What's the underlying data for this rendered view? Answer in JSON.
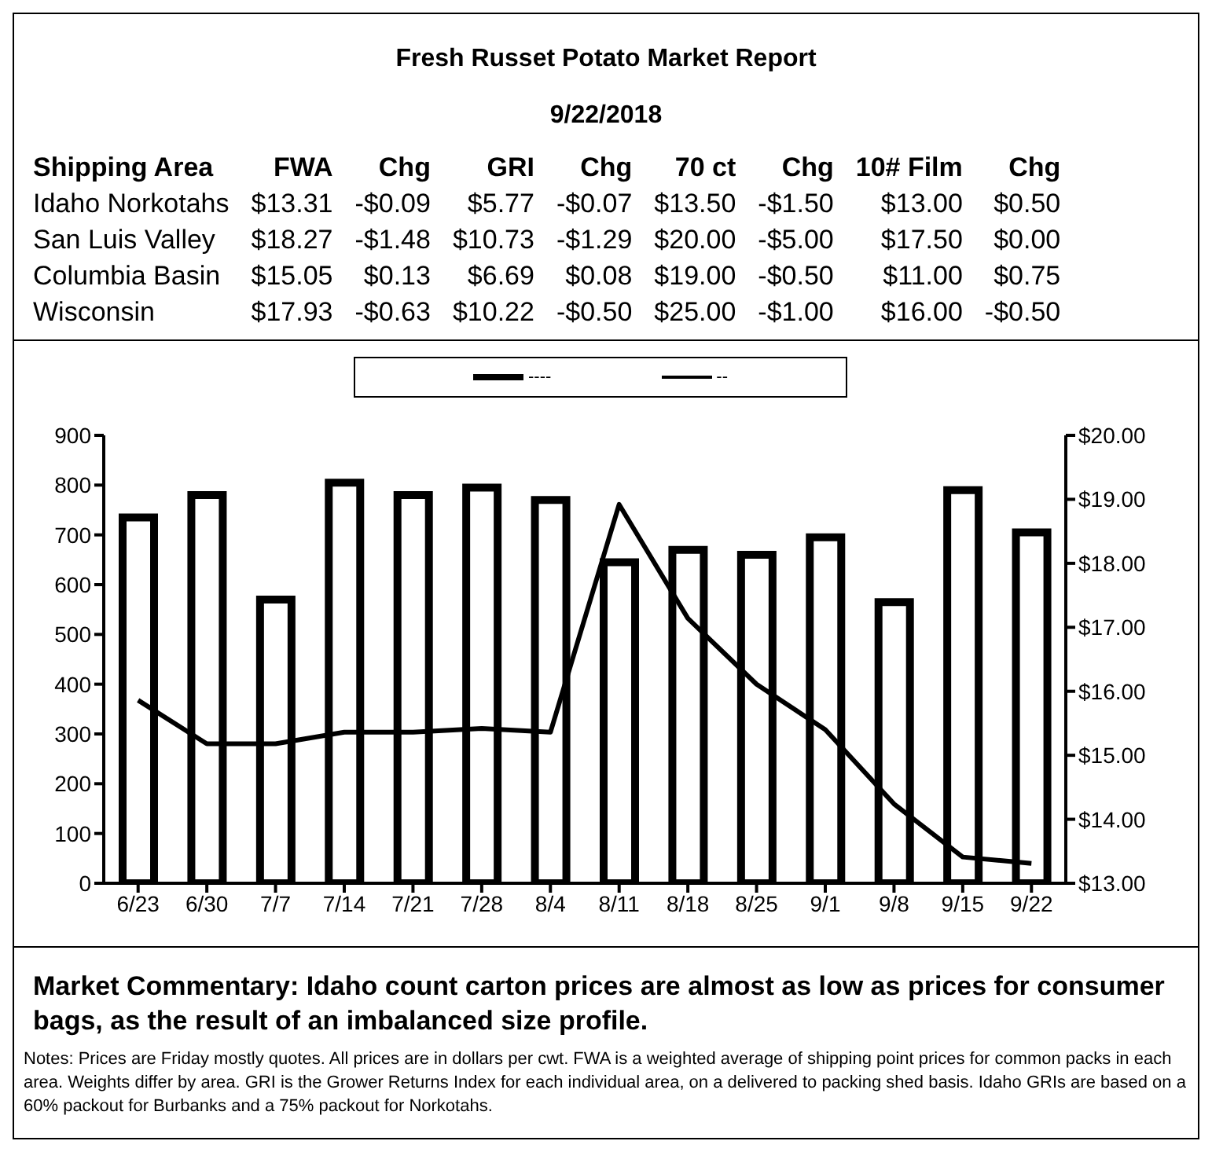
{
  "chart_data": {
    "type": "bar",
    "title": "Fresh Russet Potato Market Report",
    "subtitle": "9/22/2018",
    "categories": [
      "6/23",
      "6/30",
      "7/7",
      "7/14",
      "7/21",
      "7/28",
      "8/4",
      "8/11",
      "8/18",
      "8/25",
      "9/1",
      "9/8",
      "9/15",
      "9/22"
    ],
    "series": [
      {
        "name": "----",
        "color": "#000000",
        "values": [
          735,
          780,
          570,
          805,
          780,
          795,
          770,
          645,
          670,
          660,
          695,
          565,
          790,
          705
        ]
      },
      {
        "name": "--",
        "type": "line",
        "axis": "y2",
        "color": "#000000",
        "values": [
          15.86,
          15.18,
          15.18,
          15.36,
          15.36,
          15.42,
          15.36,
          18.92,
          17.14,
          16.11,
          15.4,
          14.24,
          13.41,
          13.31
        ]
      }
    ],
    "ylim": [
      0,
      900
    ],
    "yticks": [
      0,
      100,
      200,
      300,
      400,
      500,
      600,
      700,
      800,
      900
    ],
    "y2lim": [
      13,
      20
    ],
    "y2ticks": [
      {
        "value": 13,
        "label": "$13.00"
      },
      {
        "value": 14,
        "label": "$14.00"
      },
      {
        "value": 15,
        "label": "$15.00"
      },
      {
        "value": 16,
        "label": "$16.00"
      },
      {
        "value": 17,
        "label": "$17.00"
      },
      {
        "value": 18,
        "label": "$18.00"
      },
      {
        "value": 19,
        "label": "$19.00"
      },
      {
        "value": 20,
        "label": "$20.00"
      }
    ],
    "grid": false,
    "legend": "top",
    "marker": "none",
    "line_style": "solid",
    "annotations": [
      "Shipping Area\tFWA\tChg\tGRI\tChg\t70 ct\tChg\t10# Film\tChg",
      "Idaho Norkotahs\t$13.31\t-$0.09\t$5.77\t-$0.07\t$13.50\t-$1.50\t$13.00\t$0.50",
      "San Luis Valley\t$18.27\t-$1.48\t$10.73\t-$1.29\t$20.00\t-$5.00\t$17.50\t$0.00",
      "Columbia Basin\t$15.05\t$0.13\t$6.69\t$0.08\t$19.00\t-$0.50\t$11.00\t$0.75",
      "Wisconsin\t$17.93\t-$0.63\t$10.22\t-$0.50\t$25.00\t-$1.00\t$16.00\t-$0.50",
      "Market Commentary: Idaho count carton prices are almost as low as prices for consumer bags, as the result of an imbalanced size profile.",
      "Notes: Prices are Friday mostly quotes. All prices are in dollars per cwt. FWA is a weighted average of shipping point prices for common packs in each area. Weights differ by area. GRI is the Grower Returns Index for each individual area, on a delivered to packing shed basis. Idaho GRIs are based on a 60% packout for Burbanks and a 75% packout for Norkotahs."
    ]
  }
}
